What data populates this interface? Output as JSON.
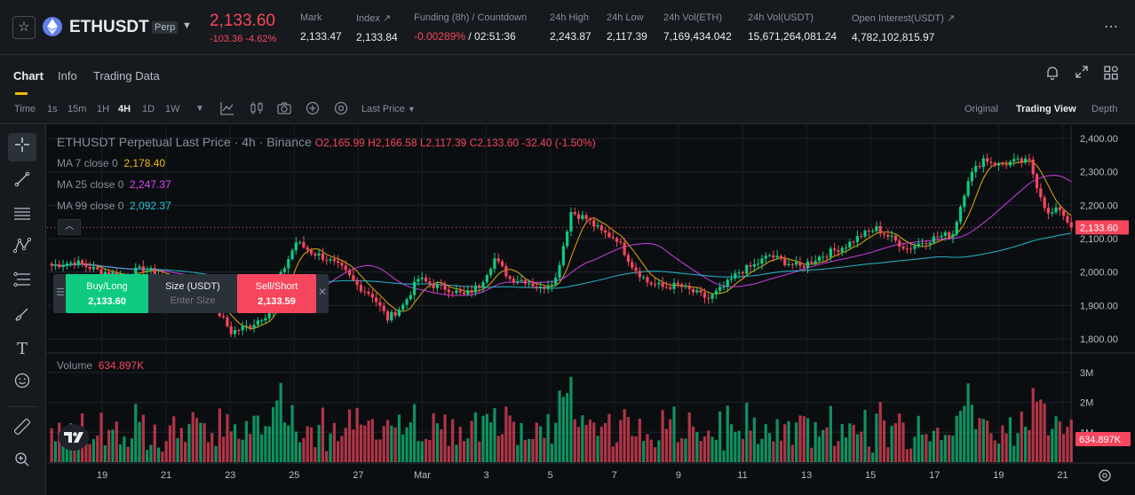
{
  "ticker": {
    "symbol": "ETHUSDT",
    "contract": "Perp",
    "last_price": "2,133.60",
    "change": "-103.36",
    "change_pct": "-4.62%",
    "stats": [
      {
        "label": "Mark",
        "value": "2,133.47"
      },
      {
        "label": "Index ↗",
        "value": "2,133.84"
      },
      {
        "label": "Funding (8h) / Countdown",
        "value_neg": "-0.00289%",
        "value": " / 02:51:36"
      },
      {
        "label": "24h High",
        "value": "2,243.87"
      },
      {
        "label": "24h Low",
        "value": "2,117.39"
      },
      {
        "label": "24h Vol(ETH)",
        "value": "7,169,434.042"
      },
      {
        "label": "24h Vol(USDT)",
        "value": "15,671,264,081.24"
      },
      {
        "label": "Open Interest(USDT) ↗",
        "value": "4,782,102,815.97"
      }
    ]
  },
  "tabs": [
    "Chart",
    "Info",
    "Trading Data"
  ],
  "toolbar": {
    "time_label": "Time",
    "intervals": [
      "1s",
      "15m",
      "1H",
      "4H",
      "1D",
      "1W"
    ],
    "active_interval": "4H",
    "price_type": "Last Price",
    "views": [
      "Original",
      "Trading View",
      "Depth"
    ],
    "active_view": "Trading View"
  },
  "legend": {
    "title": "ETHUSDT Perpetual Last Price · 4h · Binance",
    "ohlc": "O2,165.99  H2,166.58  L2,117.39  C2,133.60  -32.40  (-1.50%)",
    "ma7_label": "MA 7 close 0",
    "ma7_value": "2,178.40",
    "ma25_label": "MA 25 close 0",
    "ma25_value": "2,247.37",
    "ma99_label": "MA 99 close 0",
    "ma99_value": "2,092.37",
    "volume_label": "Volume",
    "volume_value": "634.897K"
  },
  "trade": {
    "buy_label": "Buy/Long",
    "buy_price": "2,133.60",
    "size_label": "Size (USDT)",
    "size_placeholder": "Enter Size",
    "sell_label": "Sell/Short",
    "sell_price": "2,133.59"
  },
  "colors": {
    "up": "#0ecb81",
    "down": "#f6465d",
    "ma7": "#f0b90b",
    "ma25": "#e040fb",
    "ma99": "#26c6da"
  },
  "chart_data": {
    "type": "candlestick",
    "price_axis_ticks": [
      "2,400.00",
      "2,300.00",
      "2,200.00",
      "2,100.00",
      "2,000.00",
      "1,900.00",
      "1,800.00"
    ],
    "price_ylim": [
      1760,
      2440
    ],
    "current_price_label": "2,133.60",
    "volume_axis_ticks": [
      "3M",
      "2M",
      "1M"
    ],
    "volume_ylim": [
      0,
      3500000
    ],
    "current_volume_label": "634.897K",
    "x_ticks": [
      "19",
      "21",
      "23",
      "25",
      "27",
      "Mar",
      "3",
      "5",
      "7",
      "9",
      "11",
      "13",
      "15",
      "17",
      "19",
      "21"
    ],
    "anchors": [
      [
        0,
        2020
      ],
      [
        6,
        2030
      ],
      [
        12,
        2005
      ],
      [
        18,
        1990
      ],
      [
        24,
        2010
      ],
      [
        30,
        1985
      ],
      [
        36,
        1960
      ],
      [
        42,
        1910
      ],
      [
        47,
        1820
      ],
      [
        52,
        1840
      ],
      [
        57,
        1880
      ],
      [
        60,
        1990
      ],
      [
        64,
        2090
      ],
      [
        68,
        2060
      ],
      [
        72,
        2040
      ],
      [
        76,
        2010
      ],
      [
        80,
        1960
      ],
      [
        84,
        1930
      ],
      [
        88,
        1860
      ],
      [
        92,
        1900
      ],
      [
        96,
        1980
      ],
      [
        100,
        1960
      ],
      [
        104,
        1950
      ],
      [
        108,
        1930
      ],
      [
        112,
        1960
      ],
      [
        116,
        2040
      ],
      [
        120,
        1980
      ],
      [
        124,
        1975
      ],
      [
        128,
        1950
      ],
      [
        132,
        1980
      ],
      [
        136,
        2180
      ],
      [
        140,
        2160
      ],
      [
        144,
        2120
      ],
      [
        148,
        2100
      ],
      [
        152,
        2020
      ],
      [
        156,
        1970
      ],
      [
        160,
        1955
      ],
      [
        164,
        1960
      ],
      [
        168,
        1940
      ],
      [
        172,
        1920
      ],
      [
        176,
        1955
      ],
      [
        180,
        2000
      ],
      [
        184,
        2020
      ],
      [
        188,
        2050
      ],
      [
        192,
        2030
      ],
      [
        196,
        2015
      ],
      [
        200,
        2040
      ],
      [
        204,
        2060
      ],
      [
        208,
        2080
      ],
      [
        212,
        2110
      ],
      [
        216,
        2130
      ],
      [
        220,
        2100
      ],
      [
        224,
        2070
      ],
      [
        228,
        2090
      ],
      [
        232,
        2105
      ],
      [
        236,
        2115
      ],
      [
        240,
        2280
      ],
      [
        244,
        2340
      ],
      [
        248,
        2320
      ],
      [
        252,
        2330
      ],
      [
        256,
        2330
      ],
      [
        258,
        2260
      ],
      [
        261,
        2170
      ],
      [
        264,
        2190
      ],
      [
        267,
        2133.6
      ]
    ]
  }
}
